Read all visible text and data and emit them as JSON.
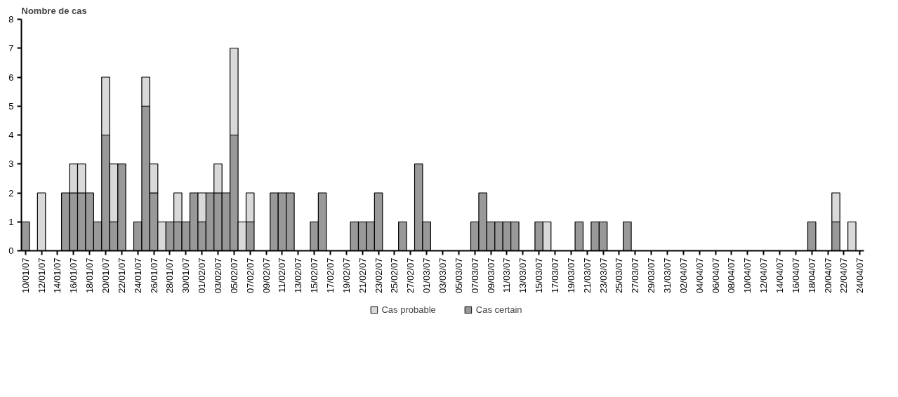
{
  "chart_data": {
    "type": "bar",
    "title": "Nombre de cas",
    "stacked": true,
    "categories": [
      "10/01/07",
      null,
      "12/01/07",
      null,
      "14/01/07",
      null,
      "16/01/07",
      null,
      "18/01/07",
      null,
      "20/01/07",
      null,
      "22/01/07",
      null,
      "24/01/07",
      null,
      "26/01/07",
      null,
      "28/01/07",
      null,
      "30/01/07",
      null,
      "01/02/07",
      null,
      "03/02/07",
      null,
      "05/02/07",
      null,
      "07/02/07",
      null,
      "09/02/07",
      null,
      "11/02/07",
      null,
      "13/02/07",
      null,
      "15/02/07",
      null,
      "17/02/07",
      null,
      "19/02/07",
      null,
      "21/02/07",
      null,
      "23/02/07",
      null,
      "25/02/07",
      null,
      "27/02/07",
      null,
      "01/03/07",
      null,
      "03/03/07",
      null,
      "05/03/07",
      null,
      "07/03/07",
      null,
      "09/03/07",
      null,
      "11/03/07",
      null,
      "13/03/07",
      null,
      "15/03/07",
      null,
      "17/03/07",
      null,
      "19/03/07",
      null,
      "21/03/07",
      null,
      "23/03/07",
      null,
      "25/03/07",
      null,
      "27/03/07",
      null,
      "29/03/07",
      null,
      "31/03/07",
      null,
      "02/04/07",
      null,
      "04/04/07",
      null,
      "06/04/07",
      null,
      "08/04/07",
      null,
      "10/04/07",
      null,
      "12/04/07",
      null,
      "14/04/07",
      null,
      "16/04/07",
      null,
      "18/04/07",
      null,
      "20/04/07",
      null,
      "22/04/07",
      null,
      "24/04/07"
    ],
    "series": [
      {
        "name": "Cas certain",
        "color": "#999999",
        "values": [
          1,
          0,
          0,
          0,
          0,
          2,
          2,
          2,
          2,
          1,
          4,
          1,
          3,
          0,
          1,
          5,
          2,
          0,
          1,
          1,
          1,
          2,
          1,
          2,
          2,
          2,
          4,
          0,
          1,
          0,
          0,
          2,
          2,
          2,
          0,
          0,
          1,
          2,
          0,
          0,
          0,
          1,
          1,
          1,
          2,
          0,
          0,
          1,
          0,
          3,
          1,
          0,
          0,
          0,
          0,
          0,
          1,
          2,
          1,
          1,
          1,
          1,
          0,
          0,
          1,
          0,
          0,
          0,
          0,
          1,
          0,
          1,
          1,
          0,
          0,
          1,
          0,
          0,
          0,
          0,
          0,
          0,
          0,
          0,
          0,
          0,
          0,
          0,
          0,
          0,
          0,
          0,
          0,
          0,
          0,
          0,
          0,
          0,
          1,
          0,
          0,
          1,
          0,
          0,
          0
        ]
      },
      {
        "name": "Cas probable",
        "color": "#d9d9d9",
        "values": [
          0,
          0,
          2,
          0,
          0,
          0,
          1,
          1,
          0,
          0,
          2,
          2,
          0,
          0,
          0,
          1,
          1,
          1,
          0,
          1,
          0,
          0,
          1,
          0,
          1,
          0,
          3,
          1,
          1,
          0,
          0,
          0,
          0,
          0,
          0,
          0,
          0,
          0,
          0,
          0,
          0,
          0,
          0,
          0,
          0,
          0,
          0,
          0,
          0,
          0,
          0,
          0,
          0,
          0,
          0,
          0,
          0,
          0,
          0,
          0,
          0,
          0,
          0,
          0,
          0,
          1,
          0,
          0,
          0,
          0,
          0,
          0,
          0,
          0,
          0,
          0,
          0,
          0,
          0,
          0,
          0,
          0,
          0,
          0,
          0,
          0,
          0,
          0,
          0,
          0,
          0,
          0,
          0,
          0,
          0,
          0,
          0,
          0,
          0,
          0,
          0,
          1,
          0,
          1,
          0
        ]
      }
    ],
    "ylim": [
      0,
      8
    ],
    "yticks": [
      0,
      1,
      2,
      3,
      4,
      5,
      6,
      7,
      8
    ],
    "grid": false,
    "legend": "bottom"
  }
}
